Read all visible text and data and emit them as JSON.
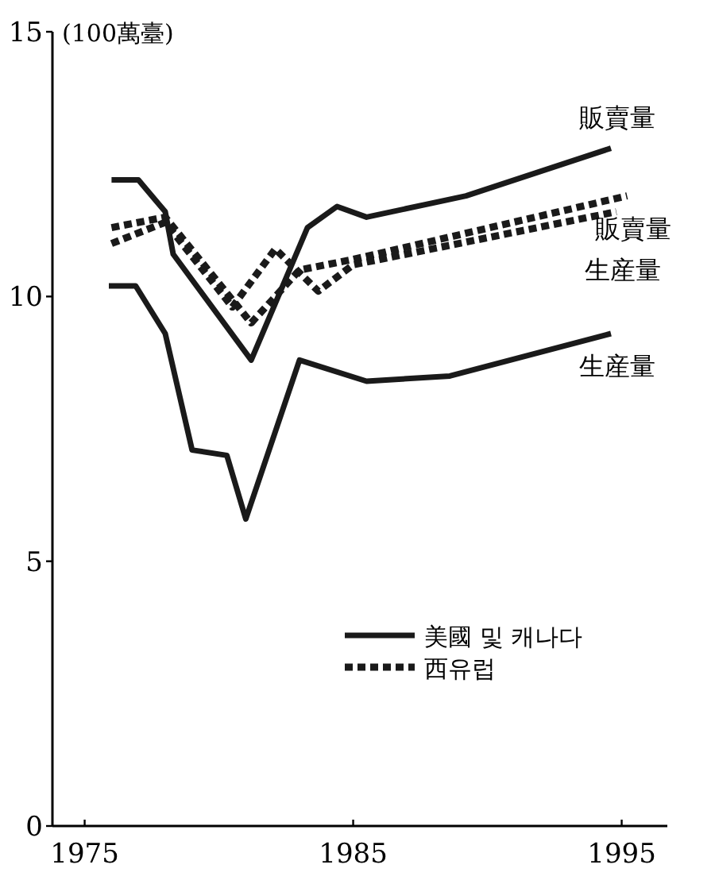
{
  "chart_data": {
    "type": "line",
    "ylabel": "(100萬臺)",
    "xlim": [
      1973.8,
      1996.7
    ],
    "ylim": [
      0,
      15
    ],
    "xticks": [
      1975,
      1985,
      1995
    ],
    "yticks": [
      0,
      5,
      10,
      15
    ],
    "series": [
      {
        "name": "販賣量",
        "color": "#1a1a1a",
        "line_style": "solid",
        "x": [
          1976,
          1977,
          1978,
          1978.3,
          1981.2,
          1983.3,
          1984.4,
          1985.5,
          1989.2,
          1994.6
        ],
        "values": [
          12.2,
          12.2,
          11.6,
          10.8,
          8.8,
          11.3,
          11.7,
          11.5,
          11.9,
          12.8
        ]
      },
      {
        "name": "販賣量",
        "color": "#1a1a1a",
        "line_style": "dotted",
        "x": [
          1976,
          1978,
          1981.2,
          1983,
          1985,
          1995.2
        ],
        "values": [
          11.3,
          11.5,
          9.5,
          10.5,
          10.7,
          11.9
        ]
      },
      {
        "name": "生産量",
        "color": "#1a1a1a",
        "line_style": "dotted",
        "x": [
          1976,
          1978,
          1980.5,
          1982.1,
          1983.7,
          1985,
          1994.8
        ],
        "values": [
          11.0,
          11.4,
          9.8,
          10.9,
          10.1,
          10.6,
          11.6
        ]
      },
      {
        "name": "生産量",
        "color": "#1a1a1a",
        "line_style": "solid",
        "x": [
          1975.9,
          1976.9,
          1978,
          1979,
          1980.3,
          1981,
          1983,
          1985.5,
          1988.6,
          1994.6
        ],
        "values": [
          10.2,
          10.2,
          9.3,
          7.1,
          7.0,
          5.8,
          8.8,
          8.4,
          8.5,
          9.3
        ]
      }
    ],
    "annotations": [
      "美國 및 캐나다",
      "西유럽"
    ]
  }
}
